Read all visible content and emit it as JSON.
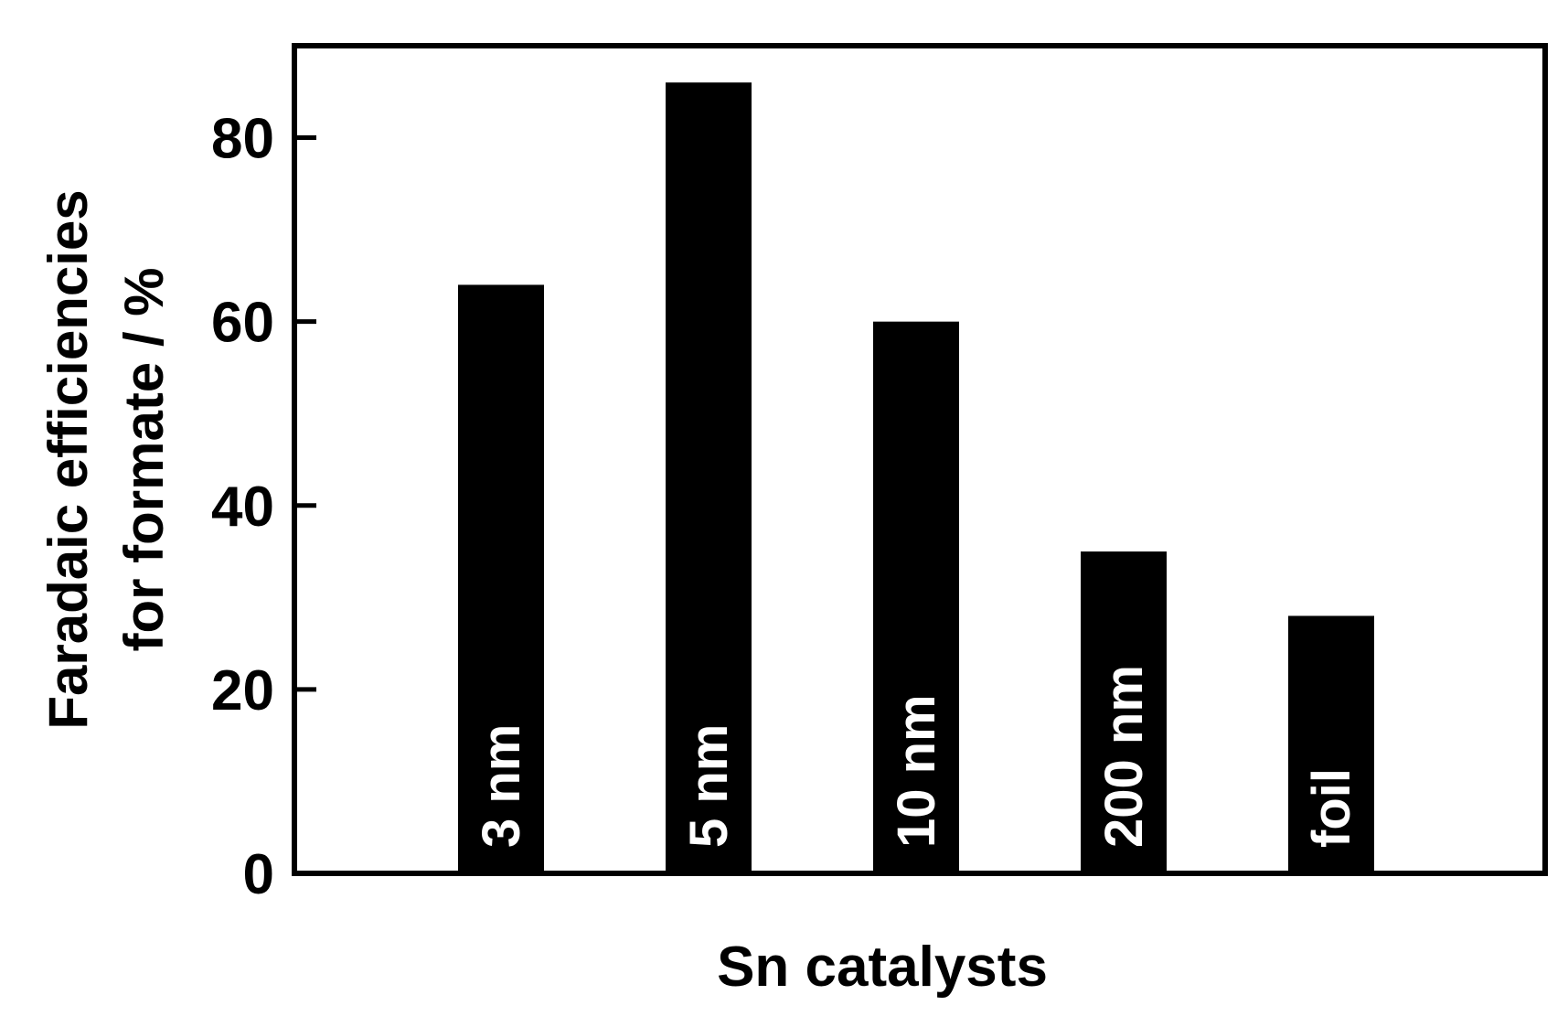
{
  "chart_data": {
    "type": "bar",
    "title": "",
    "xlabel": "Sn catalysts",
    "ylabel_lines": [
      "Faradaic efficiencies",
      "for formate / %"
    ],
    "categories": [
      "3 nm",
      "5 nm",
      "10 nm",
      "200 nm",
      "foil"
    ],
    "values": [
      64,
      86,
      60,
      35,
      28
    ],
    "ylim": [
      0,
      90
    ],
    "yticks": [
      0,
      20,
      40,
      60,
      80
    ],
    "grid": false,
    "legend": "none",
    "bar_color": "#000000",
    "bar_label_color": "#ffffff",
    "axis_color": "#000000"
  }
}
